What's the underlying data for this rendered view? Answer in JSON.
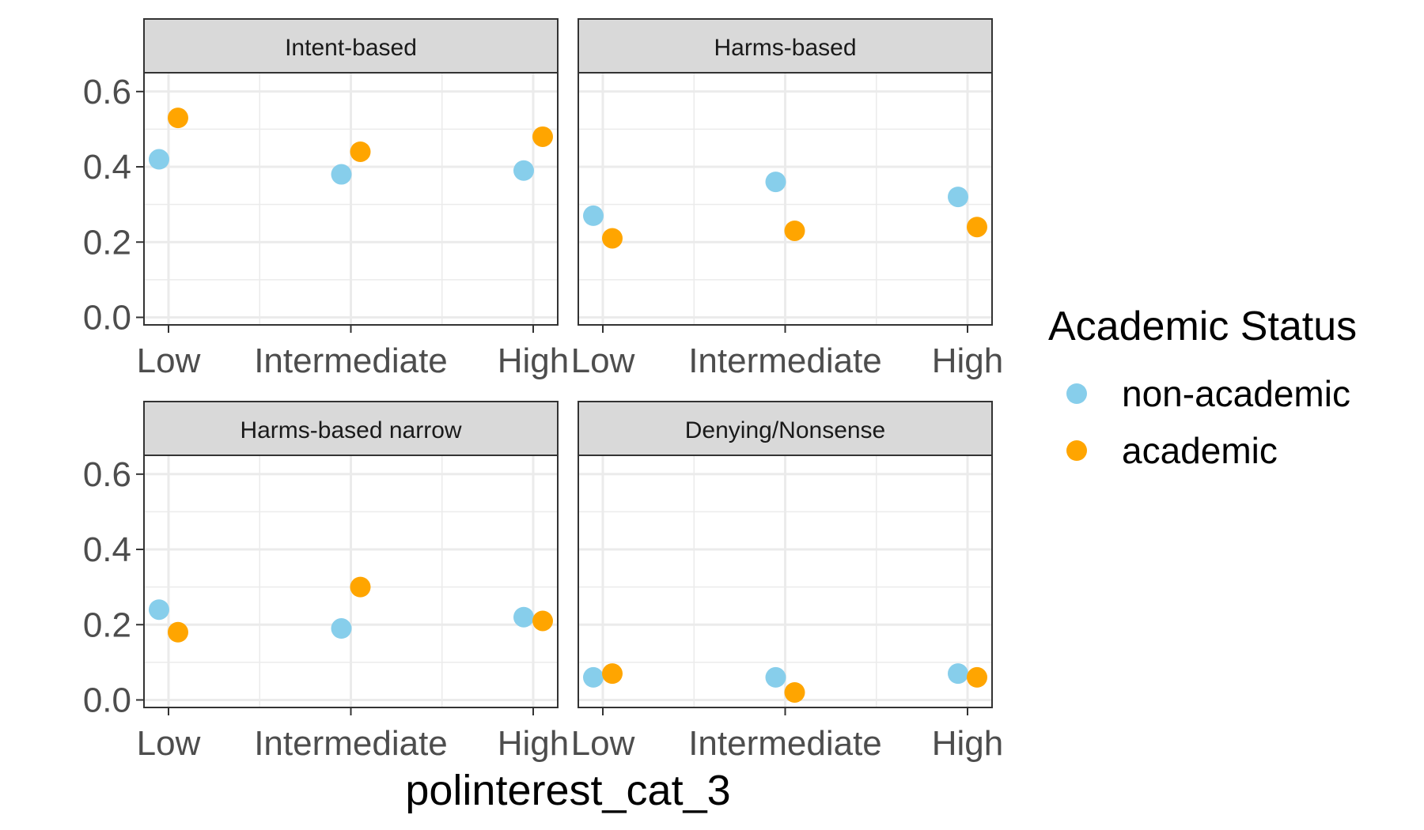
{
  "chart_data": {
    "type": "scatter",
    "xlabel": "polinterest_cat_3",
    "ylabel": "",
    "categories": [
      "Low",
      "Intermediate",
      "High"
    ],
    "y_ticks": [
      "0.0",
      "0.2",
      "0.4",
      "0.6"
    ],
    "ylim": [
      -0.02,
      0.65
    ],
    "grid": true,
    "legend": {
      "title": "Academic Status",
      "placement": "right",
      "items": [
        {
          "label": "non-academic",
          "color": "#87CEEB"
        },
        {
          "label": "academic",
          "color": "#FFA500"
        }
      ]
    },
    "panels": [
      {
        "title": "Intent-based",
        "series": [
          {
            "name": "non-academic",
            "values": [
              0.42,
              0.38,
              0.39
            ]
          },
          {
            "name": "academic",
            "values": [
              0.53,
              0.44,
              0.48
            ]
          }
        ]
      },
      {
        "title": "Harms-based",
        "series": [
          {
            "name": "non-academic",
            "values": [
              0.27,
              0.36,
              0.32
            ]
          },
          {
            "name": "academic",
            "values": [
              0.21,
              0.23,
              0.24
            ]
          }
        ]
      },
      {
        "title": "Harms-based narrow",
        "series": [
          {
            "name": "non-academic",
            "values": [
              0.24,
              0.19,
              0.22
            ]
          },
          {
            "name": "academic",
            "values": [
              0.18,
              0.3,
              0.21
            ]
          }
        ]
      },
      {
        "title": "Denying/Nonsense",
        "series": [
          {
            "name": "non-academic",
            "values": [
              0.06,
              0.06,
              0.07
            ]
          },
          {
            "name": "academic",
            "values": [
              0.07,
              0.02,
              0.06
            ]
          }
        ]
      }
    ]
  }
}
